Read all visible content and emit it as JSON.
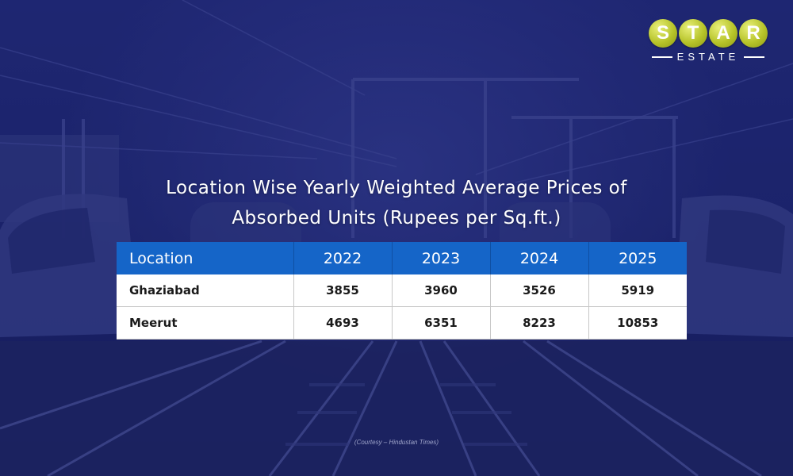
{
  "brand": {
    "letters": [
      "S",
      "T",
      "A",
      "R"
    ],
    "subtitle": "ESTATE",
    "accent_color": "#b7c42a"
  },
  "title": {
    "line1": "Location Wise Yearly Weighted Average Prices of",
    "line2": "Absorbed Units (Rupees per Sq.ft.)"
  },
  "table": {
    "header_color": "#1565c8",
    "headers": [
      "Location",
      "2022",
      "2023",
      "2024",
      "2025"
    ],
    "rows": [
      [
        "Ghaziabad",
        "3855",
        "3960",
        "3526",
        "5919"
      ],
      [
        "Meerut",
        "4693",
        "6351",
        "8223",
        "10853"
      ]
    ]
  },
  "courtesy": "(Courtesy – Hindustan Times)"
}
